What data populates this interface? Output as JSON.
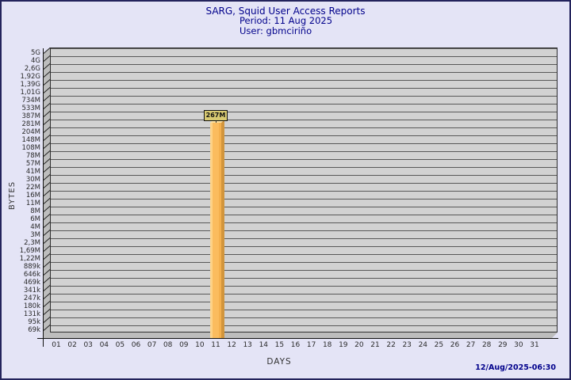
{
  "header": {
    "title": "SARG, Squid User Access Reports",
    "period": "Period: 11 Aug 2025",
    "user": "User: gbmciriño"
  },
  "footer": {
    "generated": "12/Aug/2025-06:30"
  },
  "colors": {
    "background": "#e4e4f6",
    "frame_border": "#23235c",
    "title_text": "#00008b",
    "plot_face": "#d2d2d2",
    "plot_wall": "#bdbdbd",
    "gridline": "#585858",
    "bar_front": "#fbbc5e",
    "bar_highlight": "#fdd287",
    "bar_side": "#d2953c",
    "bar_top": "#fee2a2",
    "value_tag_bg": "#d9cb72"
  },
  "chart_data": {
    "type": "bar",
    "title": "SARG, Squid User Access Reports",
    "subtitle": [
      "Period: 11 Aug 2025",
      "User: gbmciriño"
    ],
    "xlabel": "DAYS",
    "ylabel": "BYTES",
    "y_scale": "logarithmic",
    "grid": true,
    "y_tick_labels": [
      "5G",
      "4G",
      "2,6G",
      "1,92G",
      "1,39G",
      "1,01G",
      "734M",
      "533M",
      "387M",
      "281M",
      "204M",
      "148M",
      "108M",
      "78M",
      "57M",
      "41M",
      "30M",
      "22M",
      "16M",
      "11M",
      "8M",
      "6M",
      "4M",
      "3M",
      "2,3M",
      "1,69M",
      "1,22M",
      "889k",
      "646k",
      "469k",
      "341k",
      "247k",
      "180k",
      "131k",
      "95k",
      "69k"
    ],
    "x_tick_labels": [
      "01",
      "02",
      "03",
      "04",
      "05",
      "06",
      "07",
      "08",
      "09",
      "10",
      "11",
      "12",
      "13",
      "14",
      "15",
      "16",
      "17",
      "18",
      "19",
      "20",
      "21",
      "22",
      "23",
      "24",
      "25",
      "26",
      "27",
      "28",
      "29",
      "30",
      "31"
    ],
    "bars": [
      {
        "x": "11",
        "value_label": "267M",
        "value_bytes": 267000000
      }
    ],
    "footer_timestamp": "12/Aug/2025-06:30"
  }
}
